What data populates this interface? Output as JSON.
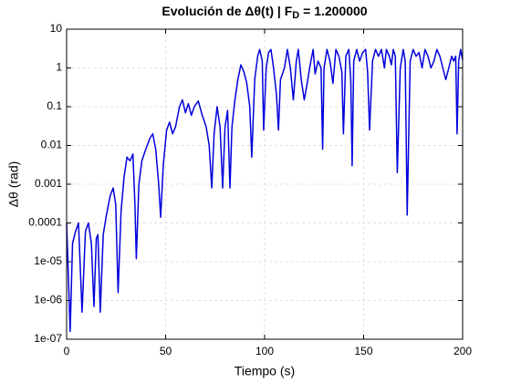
{
  "chart_data": {
    "type": "line",
    "title": [
      "Evolución de Δθ(t)  |  F",
      "D",
      " = 1.200000"
    ],
    "xlabel": "Tiempo (s)",
    "ylabel": "Δθ (rad)",
    "xlim": [
      0,
      200
    ],
    "xticks": [
      0,
      50,
      100,
      150,
      200
    ],
    "ylim": [
      1e-07,
      10
    ],
    "yscale": "log",
    "yticks": [
      {
        "value": 1e-07,
        "label": "1e-07"
      },
      {
        "value": 1e-06,
        "label": "1e-06"
      },
      {
        "value": 1e-05,
        "label": "1e-05"
      },
      0.0001,
      0.001,
      0.01,
      0.1,
      1,
      10
    ],
    "grid": true,
    "series": [
      {
        "color": "#0000dd",
        "x": [
          0,
          1.8,
          3,
          4.5,
          6,
          7.8,
          9.5,
          11,
          12.5,
          13.8,
          15,
          15.8,
          17,
          18.5,
          20,
          22,
          23.5,
          24.8,
          26,
          27.5,
          29,
          30.5,
          32,
          33.5,
          34.5,
          35.2,
          36.5,
          38,
          40,
          42,
          43.5,
          45,
          46.5,
          47.5,
          48.8,
          50.5,
          52,
          53.5,
          55,
          57,
          58.5,
          60,
          61.5,
          63,
          64.5,
          66.5,
          68.5,
          70.5,
          72,
          73.3,
          74.5,
          76,
          77.5,
          78.8,
          80,
          81.3,
          82.5,
          83.5,
          85,
          86.5,
          88,
          89.5,
          91,
          92.5,
          93.5,
          95,
          96.5,
          97.5,
          98.8,
          99.5,
          100.8,
          102,
          103.2,
          104.5,
          106,
          107,
          108,
          110,
          111.5,
          113,
          114.5,
          116,
          117,
          118.5,
          120,
          121.5,
          123,
          124.5,
          125.5,
          127,
          128.5,
          129.3,
          130,
          131.5,
          133,
          134.5,
          136,
          137.5,
          139,
          139.8,
          141,
          142.5,
          143.5,
          144.2,
          145,
          146.5,
          148,
          149.5,
          151,
          152,
          153,
          154.5,
          156,
          157.5,
          159,
          160.5,
          161.5,
          163,
          164,
          165,
          166,
          167,
          168.5,
          170,
          171,
          172,
          173.5,
          175,
          176.5,
          178,
          179.5,
          181,
          182.5,
          184,
          185.5,
          187,
          188.5,
          190,
          191.5,
          193,
          194.5,
          195.5,
          196.5,
          197.2,
          198,
          199,
          200
        ],
        "values": [
          0.0001,
          1.6e-07,
          3e-05,
          6e-05,
          0.0001,
          5e-07,
          6e-05,
          0.0001,
          3e-05,
          7e-07,
          4e-05,
          5e-05,
          5e-07,
          5e-05,
          0.00015,
          0.0005,
          0.0008,
          0.0003,
          1.6e-06,
          0.0002,
          0.0015,
          0.005,
          0.004,
          0.006,
          0.0003,
          1.2e-05,
          0.001,
          0.004,
          0.008,
          0.015,
          0.02,
          0.008,
          0.001,
          0.00014,
          0.003,
          0.025,
          0.04,
          0.02,
          0.03,
          0.1,
          0.15,
          0.07,
          0.12,
          0.06,
          0.1,
          0.14,
          0.06,
          0.03,
          0.01,
          0.0008,
          0.02,
          0.1,
          0.03,
          0.0008,
          0.03,
          0.08,
          0.0008,
          0.03,
          0.15,
          0.5,
          1.2,
          0.8,
          0.4,
          0.1,
          0.005,
          0.5,
          2,
          3,
          1.5,
          0.025,
          1,
          2.5,
          3,
          1,
          0.2,
          0.025,
          0.5,
          1,
          3,
          1,
          0.15,
          1.5,
          3,
          0.5,
          0.15,
          0.4,
          1.2,
          3,
          0.7,
          1.5,
          1,
          0.008,
          1,
          3,
          1.5,
          0.4,
          3,
          2,
          0.8,
          0.02,
          2,
          3,
          0.5,
          0.003,
          1.5,
          3,
          1.5,
          2.5,
          3,
          0.8,
          0.025,
          1.5,
          3,
          2,
          3,
          1,
          3,
          2,
          1.2,
          3,
          2,
          0.002,
          1,
          3,
          1.5,
          0.00016,
          1.5,
          3,
          2,
          2.5,
          1,
          3,
          2,
          1,
          1.5,
          3,
          2,
          1,
          0.5,
          1,
          2,
          1.5,
          2,
          0.02,
          1.5,
          3,
          1.6
        ]
      }
    ]
  }
}
